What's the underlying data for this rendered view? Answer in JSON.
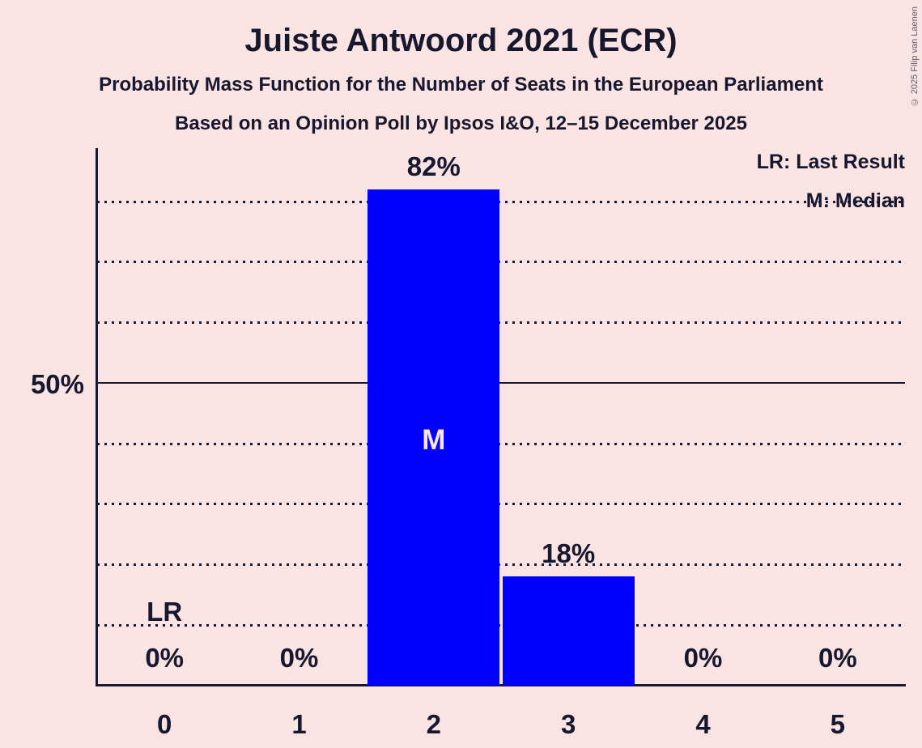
{
  "title": "Juiste Antwoord 2021 (ECR)",
  "subtitle1": "Probability Mass Function for the Number of Seats in the European Parliament",
  "subtitle2": "Based on an Opinion Poll by Ipsos I&O, 12–15 December 2025",
  "copyright": "© 2025 Filip van Laenen",
  "legend": {
    "lr_label": "LR: Last Result",
    "m_label": "M: Median"
  },
  "colors": {
    "background": "#FAE3E3",
    "bar": "#0000FF",
    "text": "#17172E",
    "bar_inner_label": "#FAE3E3"
  },
  "chart_data": {
    "type": "bar",
    "title": "Juiste Antwoord 2021 (ECR)",
    "subtitle": "Probability Mass Function for the Number of Seats in the European Parliament",
    "source_line": "Based on an Opinion Poll by Ipsos I&O, 12–15 December 2025",
    "categories": [
      "0",
      "1",
      "2",
      "3",
      "4",
      "5"
    ],
    "values": [
      0,
      0,
      82,
      18,
      0,
      0
    ],
    "value_labels": [
      "0%",
      "0%",
      "82%",
      "18%",
      "0%",
      "0%"
    ],
    "xlabel": "",
    "ylabel": "",
    "ylim": [
      0,
      89
    ],
    "y_tick": {
      "percent": 50,
      "label": "50%"
    },
    "solid_gridline_percent": 50,
    "dotted_gridlines_percent": [
      10,
      20,
      30,
      40,
      60,
      70,
      80
    ],
    "grid": "horizontal-dotted",
    "legend_position": "top-right",
    "legend_entries": [
      "LR: Last Result",
      "M: Median"
    ],
    "annotations": {
      "last_result_marker": "LR",
      "last_result_category": "0",
      "median_marker": "M",
      "median_category": "2"
    }
  }
}
